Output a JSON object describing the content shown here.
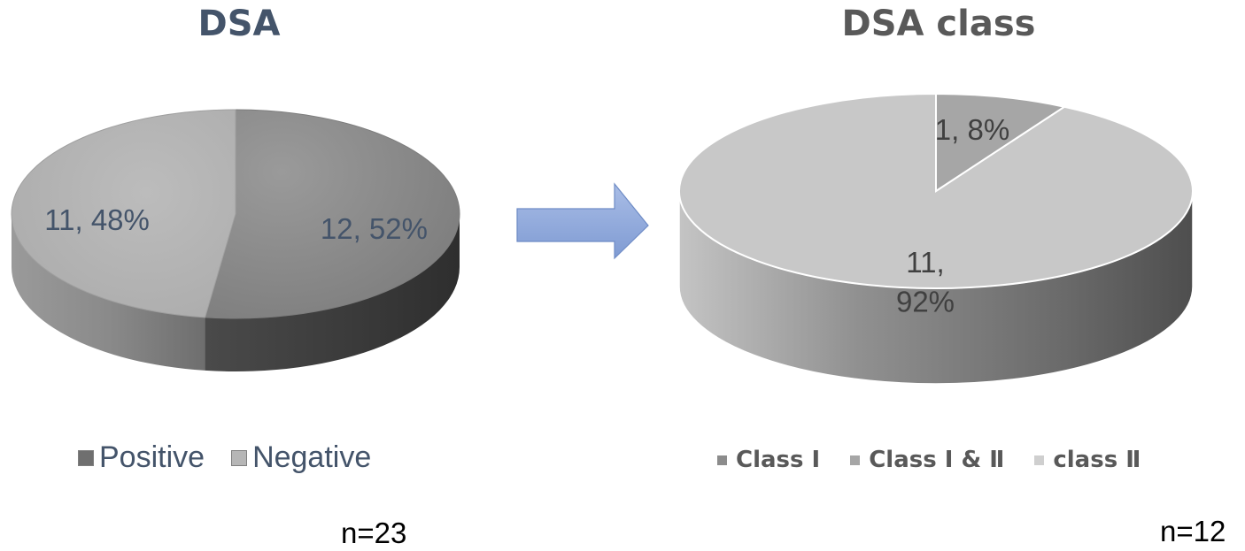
{
  "chart_data": [
    {
      "type": "pie",
      "title": "DSA",
      "categories": [
        "Positive",
        "Negative"
      ],
      "values": [
        12,
        11
      ],
      "percentages": [
        "52%",
        "48%"
      ],
      "data_labels": [
        "12, 52%",
        "11, 48%"
      ],
      "colors": [
        "#8c8c8c",
        "#b6b6b6"
      ],
      "legend_placement": "bottom",
      "note": "n=23"
    },
    {
      "type": "pie",
      "title": "DSA class",
      "categories": [
        "Class Ⅰ",
        "Class Ⅰ & Ⅱ",
        "class Ⅱ"
      ],
      "values": [
        1,
        0,
        11
      ],
      "percentages": [
        "8%",
        "0%",
        "92%"
      ],
      "data_labels": [
        "1, 8%",
        "",
        "11,\n92%"
      ],
      "colors": [
        "#a6a6a6",
        "#a6a6a6",
        "#c8c8c8"
      ],
      "legend_placement": "bottom",
      "note": "n=12"
    }
  ],
  "arrow_color": "#8faadc"
}
